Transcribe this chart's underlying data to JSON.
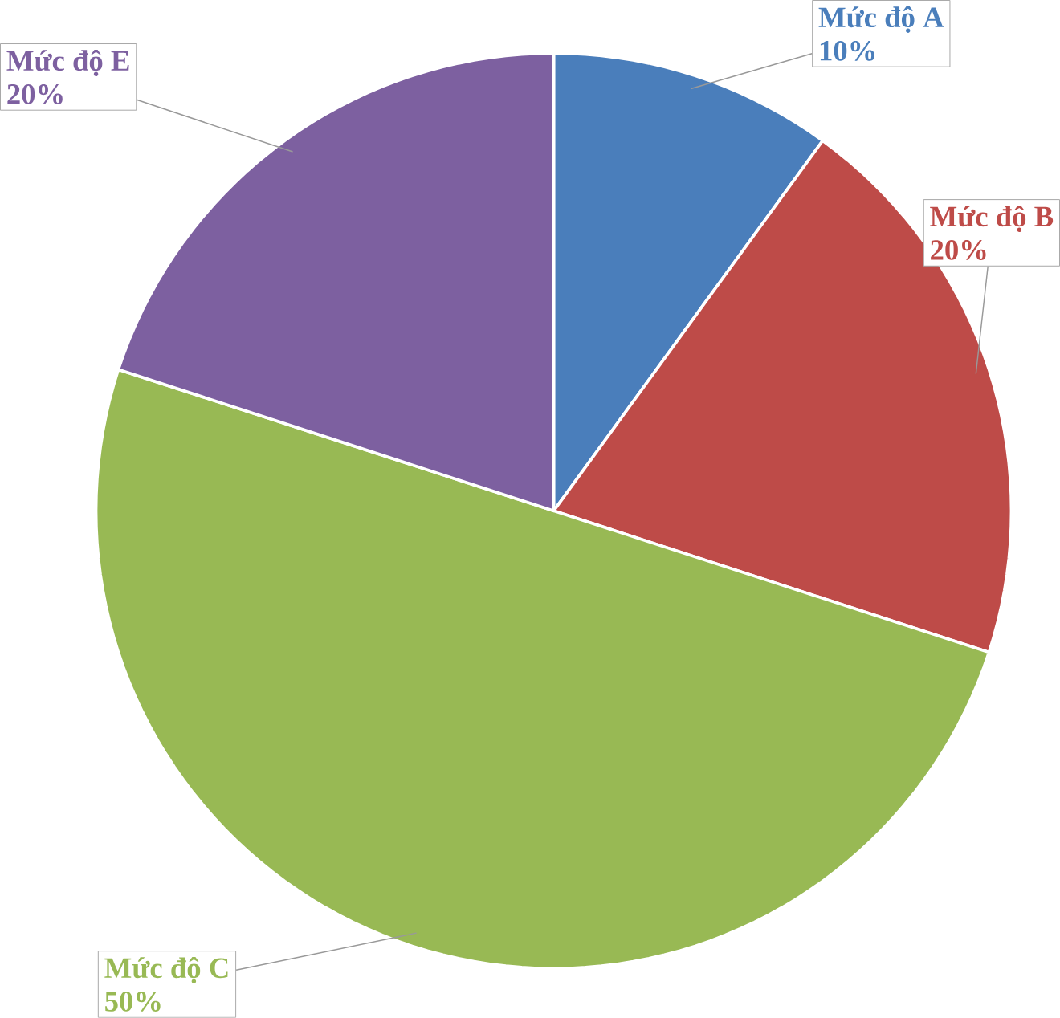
{
  "chart_data": {
    "type": "pie",
    "categories": [
      "Mức độ A",
      "Mức độ B",
      "Mức độ C",
      "Mức độ E"
    ],
    "values": [
      10,
      20,
      50,
      20
    ],
    "value_labels": [
      "10%",
      "20%",
      "50%",
      "20%"
    ],
    "colors": [
      "#4a7ebb",
      "#be4b48",
      "#98b954",
      "#7d60a0"
    ]
  }
}
